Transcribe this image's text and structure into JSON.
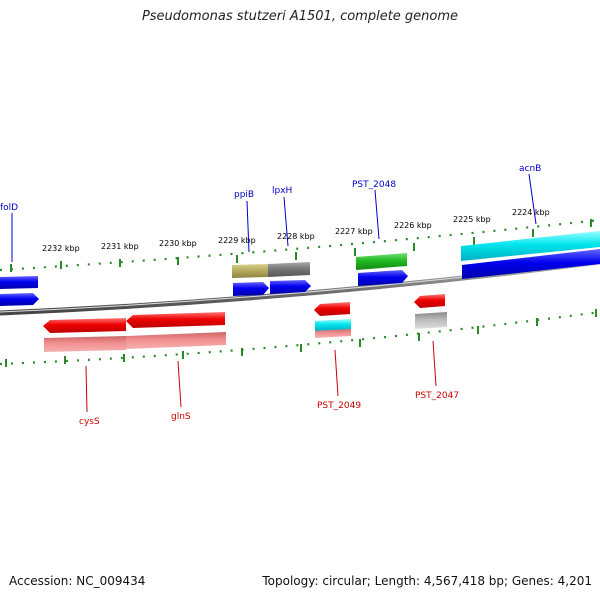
{
  "title": "Pseudomonas stutzeri A1501, complete genome",
  "footer": {
    "accession": "Accession: NC_009434",
    "topology": "Topology: circular; Length: 4,567,418 bp; Genes: 4,201"
  },
  "colors": {
    "forward_label": "#0000cc",
    "reverse_label": "#cc0000",
    "tick": "#2a8a2a",
    "backbone": "#888888"
  },
  "kbp_ticks": [
    "2232 kbp",
    "2231 kbp",
    "2230 kbp",
    "2229 kbp",
    "2228 kbp",
    "2227 kbp",
    "2226 kbp",
    "2225 kbp",
    "2224 kbp"
  ],
  "forward_genes": [
    {
      "label": "folD",
      "color": "#0000ee"
    },
    {
      "label": "ppiB",
      "color": "#0000ee"
    },
    {
      "label": "lpxH",
      "color": "#0000ee"
    },
    {
      "label": "PST_2048",
      "color": "#0000ee"
    },
    {
      "label": "acnB",
      "color": "#0000ee"
    }
  ],
  "reverse_genes": [
    {
      "label": "cysS",
      "color": "#ee0000"
    },
    {
      "label": "glnS",
      "color": "#ee0000"
    },
    {
      "label": "PST_2049",
      "color": "#ee0000"
    },
    {
      "label": "PST_2047",
      "color": "#ee0000"
    }
  ]
}
